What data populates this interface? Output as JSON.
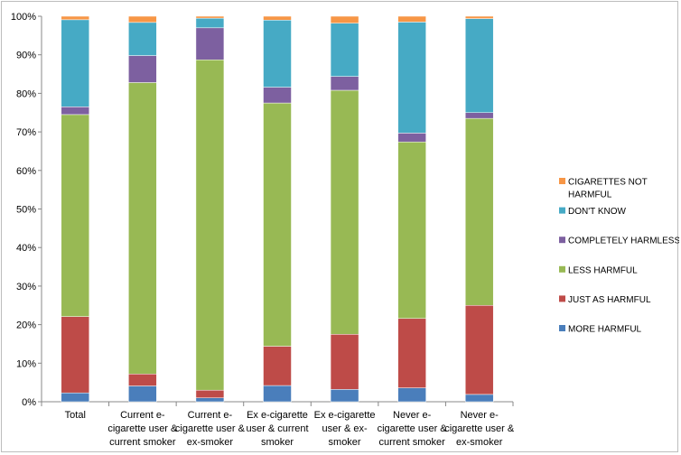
{
  "chart_data": {
    "type": "bar",
    "stacked": true,
    "percent_stacked": true,
    "title": "",
    "xlabel": "",
    "ylabel": "",
    "ylim": [
      0,
      100
    ],
    "yticks": [
      "0%",
      "10%",
      "20%",
      "30%",
      "40%",
      "50%",
      "60%",
      "70%",
      "80%",
      "90%",
      "100%"
    ],
    "categories": [
      [
        "Total"
      ],
      [
        "Current e-",
        "cigarette user &",
        "current smoker"
      ],
      [
        "Current e-",
        "cigarette user &",
        "ex-smoker"
      ],
      [
        "Ex e-cigarette",
        "user & current",
        "smoker"
      ],
      [
        "Ex e-cigarette",
        "user & ex-",
        "smoker"
      ],
      [
        "Never e-",
        "cigarette user &",
        "current smoker"
      ],
      [
        "Never e-",
        "cigarette user &",
        "ex-smoker"
      ]
    ],
    "series": [
      {
        "name": "MORE  HARMFUL",
        "color": "#4a7ebb",
        "values": [
          2.3,
          4.1,
          1.0,
          4.2,
          3.2,
          3.6,
          1.9
        ]
      },
      {
        "name": "JUST AS HARMFUL",
        "color": "#be4b48",
        "values": [
          19.8,
          3.1,
          2.0,
          10.2,
          14.3,
          18.0,
          23.1
        ]
      },
      {
        "name": "LESS HARMFUL",
        "color": "#98b954",
        "values": [
          52.4,
          75.6,
          85.7,
          63.1,
          63.3,
          45.8,
          48.5
        ]
      },
      {
        "name": "COMPLETELY HARMLESS",
        "color": "#7d60a0",
        "values": [
          2.0,
          7.0,
          8.3,
          4.1,
          3.6,
          2.3,
          1.5
        ]
      },
      {
        "name": "DON'T KNOW",
        "color": "#46aac5",
        "values": [
          22.6,
          8.6,
          2.5,
          17.4,
          13.8,
          28.8,
          24.4
        ]
      },
      {
        "name": [
          "CIGARETTES NOT",
          "HARMFUL"
        ],
        "color": "#f79646",
        "values": [
          0.9,
          1.6,
          0.5,
          1.0,
          1.8,
          1.5,
          0.6
        ]
      }
    ],
    "legend_position": "right",
    "grid": true
  }
}
